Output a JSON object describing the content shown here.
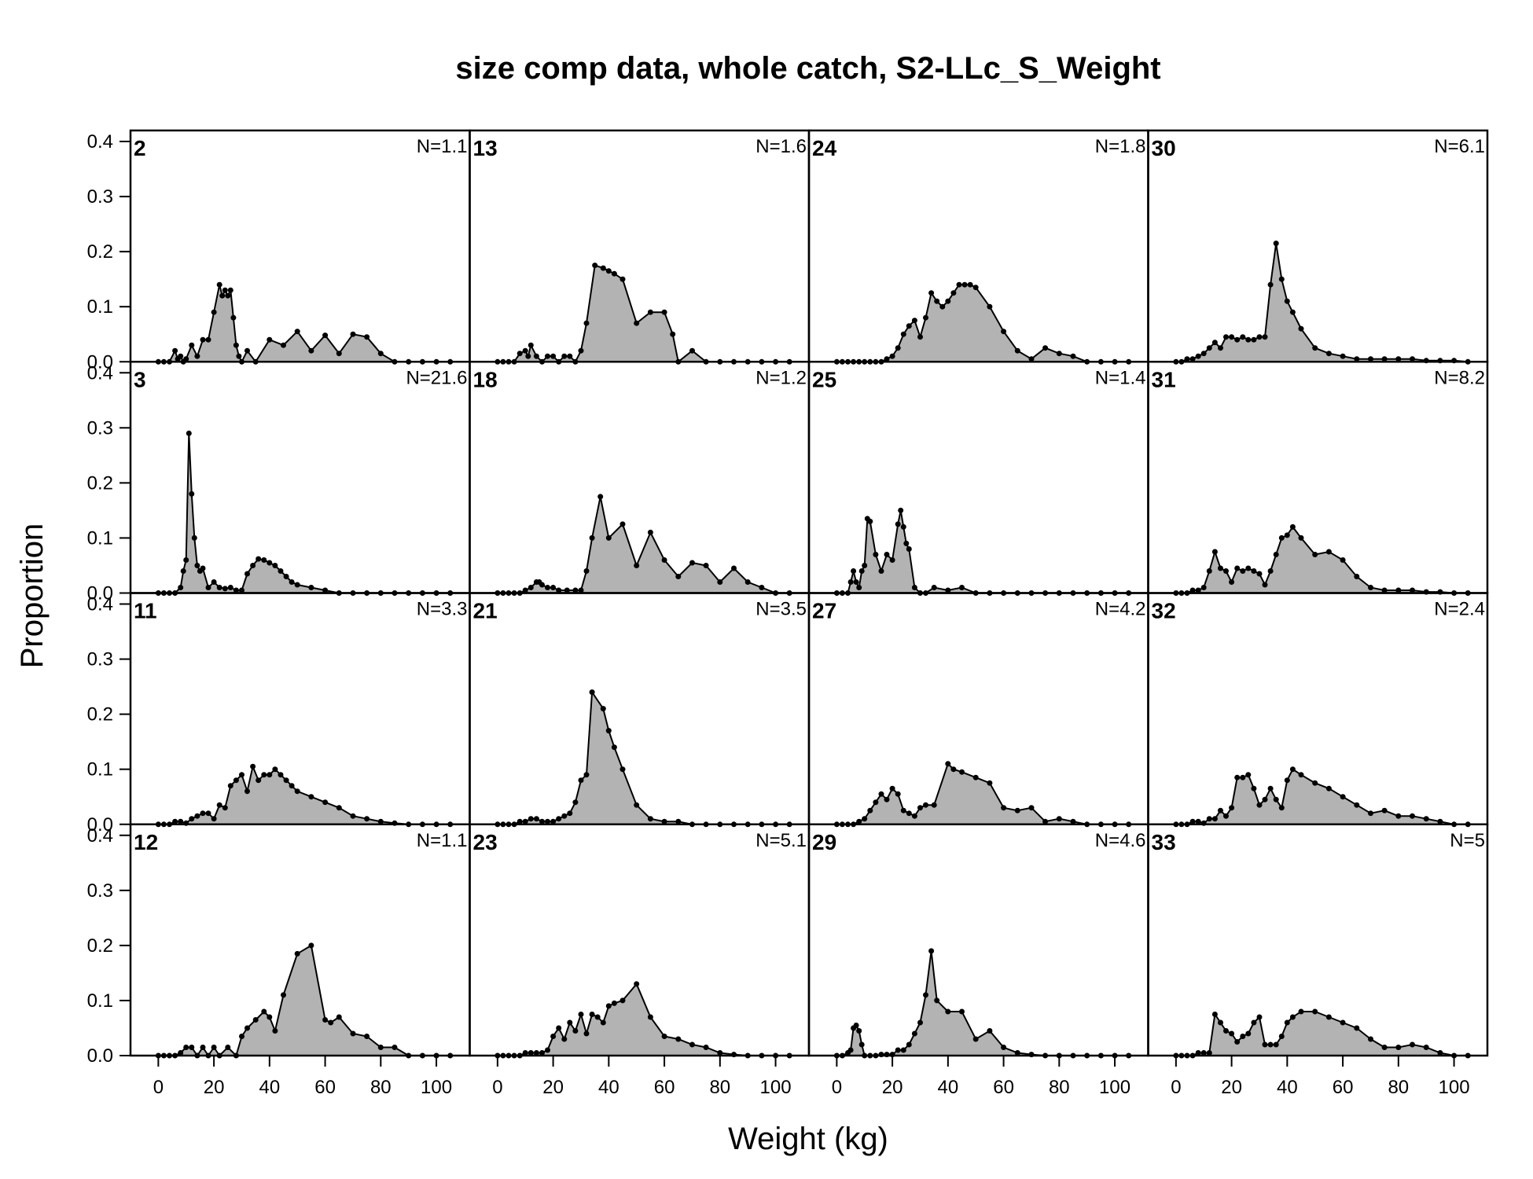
{
  "chart_data": {
    "type": "area",
    "title": "size comp data, whole catch, S2-LLc_S_Weight",
    "xlabel": "Weight (kg)",
    "ylabel": "Proportion",
    "xlim": [
      -10,
      112
    ],
    "ylim": [
      0,
      0.42
    ],
    "x_ticks": [
      0,
      20,
      40,
      60,
      80,
      100
    ],
    "x_tick_labels": [
      "0",
      "20",
      "40",
      "60",
      "80",
      "100"
    ],
    "y_ticks": [
      0,
      0.1,
      0.2,
      0.3,
      0.4
    ],
    "y_tick_labels": [
      "0.0",
      "0.1",
      "0.2",
      "0.3",
      "0.4"
    ],
    "grid": false,
    "layout": {
      "rows": 4,
      "cols": 4,
      "order": "column-major"
    },
    "fill_color": "#b3b3b3",
    "line_color": "#000000",
    "panels": [
      {
        "id": "2",
        "n_label": "N=1.1",
        "x": [
          0,
          2,
          4,
          6,
          7,
          8,
          9,
          10,
          12,
          14,
          16,
          18,
          20,
          22,
          23,
          24,
          25,
          26,
          27,
          28,
          29,
          30,
          32,
          35,
          40,
          45,
          50,
          55,
          60,
          65,
          70,
          75,
          80,
          85,
          90,
          95,
          100,
          105
        ],
        "y": [
          0,
          0,
          0,
          0.02,
          0.005,
          0.01,
          0,
          0.005,
          0.03,
          0.01,
          0.04,
          0.04,
          0.09,
          0.14,
          0.12,
          0.13,
          0.12,
          0.13,
          0.08,
          0.03,
          0.01,
          0,
          0.02,
          0,
          0.04,
          0.03,
          0.055,
          0.02,
          0.048,
          0.015,
          0.05,
          0.045,
          0.015,
          0,
          0,
          0,
          0,
          0
        ]
      },
      {
        "id": "3",
        "n_label": "N=21.6",
        "x": [
          0,
          2,
          4,
          6,
          8,
          9,
          10,
          11,
          12,
          13,
          14,
          15,
          16,
          18,
          20,
          22,
          24,
          26,
          28,
          30,
          32,
          34,
          36,
          38,
          40,
          42,
          44,
          46,
          48,
          50,
          55,
          60,
          65,
          70,
          75,
          80,
          85,
          90,
          95,
          100,
          105
        ],
        "y": [
          0,
          0,
          0,
          0,
          0.01,
          0.04,
          0.06,
          0.29,
          0.18,
          0.1,
          0.05,
          0.04,
          0.045,
          0.01,
          0.02,
          0.01,
          0.008,
          0.01,
          0.005,
          0.005,
          0.035,
          0.05,
          0.062,
          0.06,
          0.055,
          0.05,
          0.04,
          0.03,
          0.02,
          0.015,
          0.01,
          0.005,
          0,
          0,
          0,
          0,
          0,
          0,
          0,
          0,
          0
        ]
      },
      {
        "id": "11",
        "n_label": "N=3.3",
        "x": [
          0,
          2,
          4,
          6,
          8,
          10,
          12,
          14,
          16,
          18,
          20,
          22,
          24,
          26,
          28,
          30,
          32,
          34,
          36,
          38,
          40,
          42,
          44,
          46,
          48,
          50,
          55,
          60,
          65,
          70,
          75,
          80,
          85,
          90,
          95,
          100,
          105
        ],
        "y": [
          0,
          0,
          0,
          0.005,
          0.005,
          0.002,
          0.01,
          0.015,
          0.02,
          0.02,
          0.01,
          0.035,
          0.03,
          0.07,
          0.08,
          0.09,
          0.06,
          0.105,
          0.08,
          0.09,
          0.09,
          0.1,
          0.09,
          0.08,
          0.07,
          0.06,
          0.05,
          0.04,
          0.03,
          0.015,
          0.01,
          0.005,
          0.002,
          0,
          0,
          0,
          0
        ]
      },
      {
        "id": "12",
        "n_label": "N=1.1",
        "x": [
          0,
          2,
          4,
          6,
          8,
          10,
          12,
          14,
          16,
          18,
          20,
          22,
          25,
          28,
          30,
          32,
          35,
          38,
          40,
          42,
          45,
          50,
          55,
          60,
          62,
          65,
          70,
          75,
          80,
          85,
          90,
          95,
          100,
          105
        ],
        "y": [
          0,
          0,
          0,
          0,
          0.005,
          0.015,
          0.015,
          0,
          0.015,
          0,
          0.015,
          0,
          0.015,
          0,
          0.035,
          0.05,
          0.065,
          0.08,
          0.07,
          0.045,
          0.11,
          0.185,
          0.2,
          0.065,
          0.06,
          0.07,
          0.04,
          0.035,
          0.015,
          0.015,
          0,
          0,
          0,
          0
        ]
      },
      {
        "id": "13",
        "n_label": "N=1.6",
        "x": [
          0,
          2,
          4,
          6,
          8,
          10,
          11,
          12,
          14,
          16,
          18,
          20,
          22,
          24,
          26,
          28,
          30,
          32,
          35,
          38,
          40,
          42,
          45,
          50,
          55,
          60,
          63,
          65,
          70,
          75,
          80,
          85,
          90,
          95,
          100,
          105
        ],
        "y": [
          0,
          0,
          0,
          0,
          0.015,
          0.02,
          0.01,
          0.03,
          0.01,
          0,
          0.01,
          0.01,
          0,
          0.01,
          0.01,
          0,
          0.02,
          0.07,
          0.175,
          0.17,
          0.165,
          0.16,
          0.15,
          0.07,
          0.09,
          0.09,
          0.05,
          0,
          0.02,
          0,
          0,
          0,
          0,
          0,
          0,
          0
        ]
      },
      {
        "id": "18",
        "n_label": "N=1.2",
        "x": [
          0,
          2,
          4,
          6,
          8,
          10,
          12,
          14,
          15,
          16,
          18,
          20,
          22,
          25,
          28,
          30,
          32,
          34,
          37,
          40,
          45,
          50,
          55,
          60,
          65,
          70,
          75,
          80,
          85,
          90,
          95,
          100,
          105
        ],
        "y": [
          0,
          0,
          0,
          0,
          0,
          0.005,
          0.01,
          0.02,
          0.02,
          0.015,
          0.01,
          0.01,
          0.005,
          0.005,
          0.005,
          0.005,
          0.04,
          0.1,
          0.175,
          0.1,
          0.125,
          0.05,
          0.11,
          0.06,
          0.03,
          0.055,
          0.05,
          0.02,
          0.045,
          0.02,
          0.01,
          0,
          0
        ]
      },
      {
        "id": "21",
        "n_label": "N=3.5",
        "x": [
          0,
          2,
          4,
          6,
          8,
          10,
          12,
          14,
          16,
          18,
          20,
          22,
          24,
          26,
          28,
          30,
          32,
          34,
          38,
          40,
          42,
          45,
          50,
          55,
          60,
          65,
          70,
          75,
          80,
          85,
          90,
          95,
          100,
          105
        ],
        "y": [
          0,
          0,
          0,
          0,
          0.005,
          0.005,
          0.01,
          0.01,
          0.005,
          0.005,
          0.005,
          0.01,
          0.015,
          0.02,
          0.04,
          0.08,
          0.09,
          0.24,
          0.21,
          0.17,
          0.14,
          0.1,
          0.035,
          0.01,
          0.005,
          0.005,
          0,
          0,
          0,
          0,
          0,
          0,
          0,
          0
        ]
      },
      {
        "id": "23",
        "n_label": "N=5.1",
        "x": [
          0,
          2,
          4,
          6,
          8,
          10,
          12,
          14,
          16,
          18,
          20,
          22,
          24,
          26,
          28,
          30,
          32,
          34,
          36,
          38,
          40,
          42,
          45,
          50,
          55,
          60,
          65,
          70,
          75,
          80,
          85,
          90,
          95,
          100,
          105
        ],
        "y": [
          0,
          0,
          0,
          0,
          0,
          0.005,
          0.005,
          0.005,
          0.005,
          0.01,
          0.035,
          0.05,
          0.03,
          0.06,
          0.045,
          0.075,
          0.04,
          0.075,
          0.07,
          0.06,
          0.09,
          0.095,
          0.1,
          0.13,
          0.07,
          0.035,
          0.03,
          0.02,
          0.015,
          0.005,
          0.002,
          0,
          0,
          0,
          0
        ]
      },
      {
        "id": "24",
        "n_label": "N=1.8",
        "x": [
          0,
          2,
          4,
          6,
          8,
          10,
          12,
          14,
          16,
          18,
          20,
          22,
          24,
          26,
          28,
          30,
          32,
          34,
          36,
          38,
          40,
          42,
          44,
          46,
          48,
          50,
          55,
          60,
          65,
          70,
          75,
          80,
          85,
          90,
          95,
          100,
          105
        ],
        "y": [
          0,
          0,
          0,
          0,
          0,
          0,
          0,
          0,
          0,
          0.005,
          0.01,
          0.025,
          0.05,
          0.065,
          0.075,
          0.045,
          0.08,
          0.125,
          0.11,
          0.1,
          0.11,
          0.125,
          0.14,
          0.14,
          0.14,
          0.135,
          0.1,
          0.055,
          0.02,
          0.005,
          0.025,
          0.015,
          0.01,
          0,
          0,
          0,
          0
        ]
      },
      {
        "id": "25",
        "n_label": "N=1.4",
        "x": [
          0,
          2,
          4,
          5,
          6,
          7,
          8,
          9,
          10,
          11,
          12,
          14,
          16,
          18,
          20,
          22,
          23,
          24,
          25,
          26,
          28,
          30,
          32,
          35,
          40,
          45,
          50,
          55,
          60,
          65,
          70,
          75,
          80,
          85,
          90,
          95,
          100,
          105
        ],
        "y": [
          0,
          0,
          0,
          0.02,
          0.04,
          0.02,
          0.01,
          0.04,
          0.05,
          0.135,
          0.13,
          0.07,
          0.04,
          0.07,
          0.06,
          0.125,
          0.15,
          0.12,
          0.09,
          0.08,
          0.01,
          0,
          0,
          0.01,
          0.005,
          0.01,
          0,
          0,
          0,
          0,
          0,
          0,
          0,
          0,
          0,
          0,
          0,
          0
        ]
      },
      {
        "id": "27",
        "n_label": "N=4.2",
        "x": [
          0,
          2,
          4,
          6,
          8,
          10,
          12,
          14,
          16,
          18,
          20,
          22,
          24,
          26,
          28,
          30,
          32,
          35,
          40,
          42,
          45,
          50,
          55,
          60,
          65,
          70,
          75,
          80,
          85,
          90,
          95,
          100,
          105
        ],
        "y": [
          0,
          0,
          0,
          0,
          0.005,
          0.01,
          0.025,
          0.04,
          0.055,
          0.045,
          0.065,
          0.055,
          0.025,
          0.02,
          0.015,
          0.03,
          0.035,
          0.035,
          0.11,
          0.1,
          0.095,
          0.085,
          0.075,
          0.03,
          0.025,
          0.03,
          0.005,
          0.01,
          0.005,
          0,
          0,
          0,
          0
        ]
      },
      {
        "id": "29",
        "n_label": "N=4.6",
        "x": [
          0,
          2,
          4,
          5,
          6,
          7,
          8,
          9,
          10,
          12,
          14,
          16,
          18,
          20,
          22,
          24,
          26,
          28,
          30,
          32,
          34,
          36,
          40,
          45,
          50,
          55,
          60,
          65,
          70,
          75,
          80,
          85,
          90,
          95,
          100,
          105
        ],
        "y": [
          0,
          0,
          0.005,
          0.01,
          0.05,
          0.055,
          0.045,
          0.02,
          0,
          0,
          0,
          0.002,
          0.002,
          0.002,
          0.01,
          0.01,
          0.02,
          0.04,
          0.06,
          0.11,
          0.19,
          0.1,
          0.08,
          0.08,
          0.03,
          0.045,
          0.015,
          0.005,
          0.002,
          0,
          0,
          0,
          0,
          0,
          0,
          0
        ]
      },
      {
        "id": "30",
        "n_label": "N=6.1",
        "x": [
          0,
          2,
          4,
          6,
          8,
          10,
          12,
          14,
          16,
          18,
          20,
          22,
          24,
          26,
          28,
          30,
          32,
          34,
          36,
          38,
          40,
          42,
          45,
          50,
          55,
          60,
          65,
          70,
          75,
          80,
          85,
          90,
          95,
          100,
          105
        ],
        "y": [
          0,
          0,
          0.005,
          0.005,
          0.01,
          0.015,
          0.025,
          0.035,
          0.025,
          0.045,
          0.045,
          0.04,
          0.045,
          0.04,
          0.04,
          0.045,
          0.045,
          0.14,
          0.215,
          0.15,
          0.11,
          0.09,
          0.06,
          0.025,
          0.015,
          0.01,
          0.005,
          0.005,
          0.005,
          0.005,
          0.005,
          0.002,
          0.002,
          0.002,
          0
        ]
      },
      {
        "id": "31",
        "n_label": "N=8.2",
        "x": [
          0,
          2,
          4,
          6,
          8,
          10,
          12,
          14,
          16,
          18,
          20,
          22,
          24,
          26,
          28,
          30,
          32,
          34,
          36,
          38,
          40,
          42,
          45,
          50,
          55,
          60,
          65,
          70,
          75,
          80,
          85,
          90,
          95,
          100,
          105
        ],
        "y": [
          0,
          0,
          0,
          0.005,
          0.005,
          0.01,
          0.04,
          0.075,
          0.045,
          0.04,
          0.02,
          0.045,
          0.04,
          0.045,
          0.04,
          0.035,
          0.015,
          0.04,
          0.07,
          0.1,
          0.105,
          0.12,
          0.1,
          0.07,
          0.075,
          0.06,
          0.03,
          0.01,
          0.005,
          0.005,
          0.005,
          0.002,
          0.002,
          0,
          0
        ]
      },
      {
        "id": "32",
        "n_label": "N=2.4",
        "x": [
          0,
          2,
          4,
          6,
          8,
          10,
          12,
          14,
          16,
          18,
          20,
          22,
          24,
          26,
          28,
          30,
          32,
          34,
          36,
          38,
          40,
          42,
          45,
          50,
          55,
          60,
          65,
          70,
          75,
          80,
          85,
          90,
          95,
          100,
          105
        ],
        "y": [
          0,
          0,
          0,
          0.005,
          0.005,
          0.002,
          0.01,
          0.01,
          0.025,
          0.015,
          0.03,
          0.085,
          0.085,
          0.09,
          0.065,
          0.035,
          0.045,
          0.065,
          0.045,
          0.03,
          0.08,
          0.1,
          0.09,
          0.075,
          0.065,
          0.05,
          0.035,
          0.02,
          0.025,
          0.015,
          0.015,
          0.01,
          0.005,
          0,
          0
        ]
      },
      {
        "id": "33",
        "n_label": "N=5",
        "x": [
          0,
          2,
          4,
          6,
          8,
          10,
          12,
          14,
          16,
          18,
          20,
          22,
          24,
          26,
          28,
          30,
          32,
          34,
          36,
          38,
          40,
          42,
          45,
          50,
          55,
          60,
          65,
          70,
          75,
          80,
          85,
          90,
          95,
          100,
          105
        ],
        "y": [
          0,
          0,
          0,
          0,
          0.005,
          0.005,
          0.005,
          0.075,
          0.06,
          0.045,
          0.04,
          0.025,
          0.035,
          0.04,
          0.06,
          0.07,
          0.02,
          0.02,
          0.02,
          0.035,
          0.06,
          0.07,
          0.08,
          0.08,
          0.07,
          0.06,
          0.05,
          0.03,
          0.015,
          0.015,
          0.02,
          0.015,
          0.005,
          0,
          0
        ]
      }
    ]
  }
}
